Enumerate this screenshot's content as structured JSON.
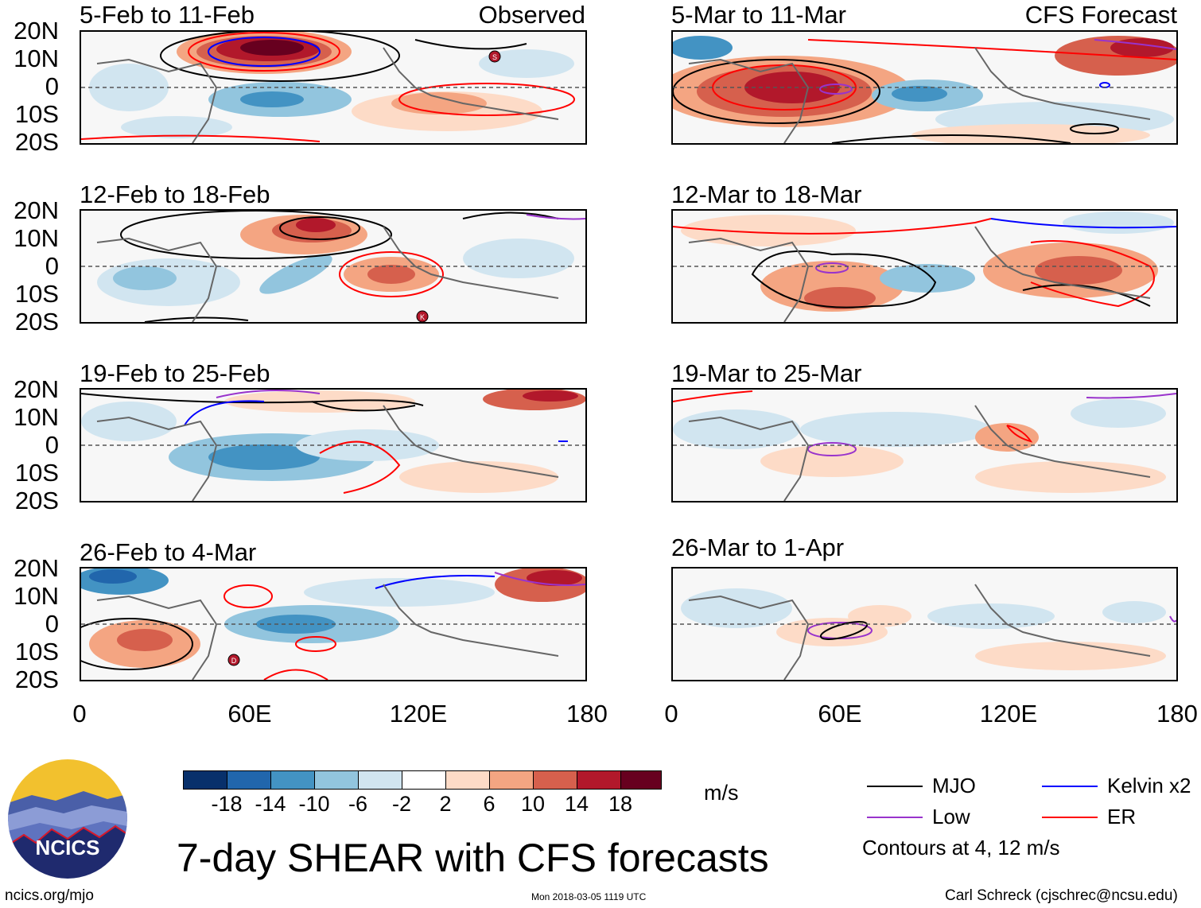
{
  "panels": [
    {
      "title": "5-Feb to 11-Feb",
      "tag": "Observed"
    },
    {
      "title": "12-Feb to 18-Feb",
      "tag": ""
    },
    {
      "title": "19-Feb to 25-Feb",
      "tag": ""
    },
    {
      "title": "26-Feb to 4-Mar",
      "tag": ""
    },
    {
      "title": "5-Mar to 11-Mar",
      "tag": "CFS Forecast"
    },
    {
      "title": "12-Mar to 18-Mar",
      "tag": ""
    },
    {
      "title": "19-Mar to 25-Mar",
      "tag": ""
    },
    {
      "title": "26-Mar to 1-Apr",
      "tag": ""
    }
  ],
  "lat_labels": [
    "20N",
    "10N",
    "0",
    "10S",
    "20S"
  ],
  "lon_labels": [
    "0",
    "60E",
    "120E",
    "180"
  ],
  "storm_markers": [
    "S",
    "K",
    "D"
  ],
  "colorbar": {
    "colors": [
      "#08306b",
      "#2166ac",
      "#4393c3",
      "#92c5de",
      "#d1e5f0",
      "#ffffff",
      "#fddbc7",
      "#f4a582",
      "#d6604d",
      "#b2182b",
      "#67001f"
    ],
    "ticks": [
      "-18",
      "-14",
      "-10",
      "-6",
      "-2",
      "2",
      "6",
      "10",
      "14",
      "18"
    ],
    "units": "m/s"
  },
  "title": "7-day SHEAR with CFS forecasts",
  "legend": [
    {
      "label": "MJO",
      "color": "#000000"
    },
    {
      "label": "Kelvin x2",
      "color": "#0000ff"
    },
    {
      "label": "Low",
      "color": "#9933cc"
    },
    {
      "label": "ER",
      "color": "#ff0000"
    }
  ],
  "contour_note": "Contours at 4, 12 m/s",
  "logo_text": "NCICS",
  "footer": {
    "site": "ncics.org/mjo",
    "timestamp": "Mon 2018-03-05 1119 UTC",
    "credit": "Carl Schreck (cjschrec@ncsu.edu)"
  }
}
